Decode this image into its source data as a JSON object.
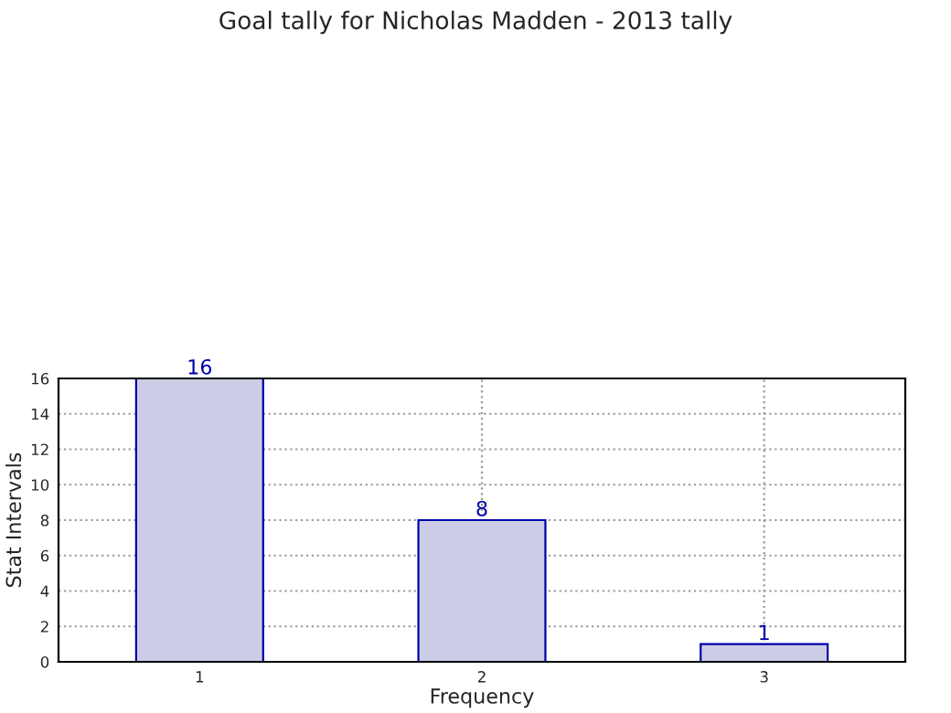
{
  "chart_data": {
    "type": "bar",
    "title": "Goal tally for Nicholas Madden - 2013 tally",
    "xlabel": "Frequency",
    "ylabel": "Stat Intervals",
    "categories": [
      "1",
      "2",
      "3"
    ],
    "series": [
      {
        "color": "#cccce6",
        "values": [
          16,
          8,
          1
        ]
      }
    ],
    "ylim": [
      0,
      16
    ],
    "yticks": [
      0,
      2,
      4,
      6,
      8,
      10,
      12,
      14,
      16
    ],
    "grid": true,
    "data_labels": true
  }
}
